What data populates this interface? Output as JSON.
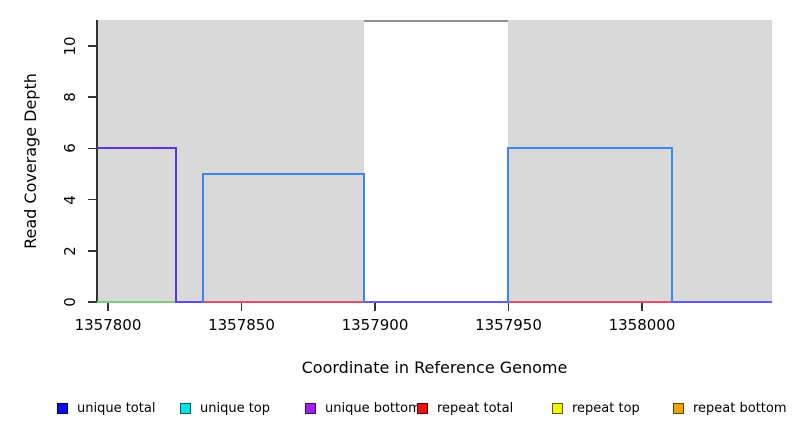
{
  "chart_data": {
    "type": "line",
    "title": "",
    "xlabel": "Coordinate in Reference Genome",
    "ylabel": "Read Coverage Depth",
    "xlim": [
      1357795.9,
      1358048.7
    ],
    "ylim": [
      0,
      11.05
    ],
    "x_ticks": [
      1357800,
      1357850,
      1357900,
      1357950,
      1358000
    ],
    "x_tick_labels": [
      "1357800",
      "1357850",
      "1357900",
      "1357950",
      "1358000"
    ],
    "y_ticks": [
      0,
      2,
      4,
      6,
      8,
      10
    ],
    "y_tick_labels": [
      "0",
      "2",
      "4",
      "6",
      "8",
      "10"
    ],
    "grid": false,
    "legend_position": "bottom",
    "background_regions": [
      {
        "name": "unique-region-left",
        "x1": 1357795.9,
        "x2": 1357895.9,
        "color": "#d9d9d9"
      },
      {
        "name": "repeat-region-white-band",
        "x1": 1357895.9,
        "x2": 1357949.8,
        "color": "#ffffff",
        "top_line_y": 11,
        "top_line_color": "#8e8e8e"
      },
      {
        "name": "unique-region-right",
        "x1": 1357949.8,
        "x2": 1358048.7,
        "color": "#d9d9d9"
      }
    ],
    "series": [
      {
        "name": "unique bottom",
        "color": "#5d33e6",
        "steps_x": [
          1357795.9,
          1357825.4,
          1358048.7
        ],
        "steps_y": [
          6,
          0,
          0
        ]
      },
      {
        "name": "unique total / unique top",
        "color": "#3b86f0",
        "steps_x": [
          1357795.9,
          1357835.6,
          1357895.9,
          1357949.8,
          1358011.2,
          1358048.7
        ],
        "steps_y": [
          0,
          5,
          0,
          6,
          0,
          0
        ]
      },
      {
        "name": "repeat total",
        "color": "#e04f66",
        "steps_x": [
          1357835.6,
          1358011.2
        ],
        "steps_y": [
          0,
          0
        ]
      }
    ],
    "drawn_segments": [
      {
        "kind": "h",
        "x1": 1357795.9,
        "x2": 1357825.4,
        "y": 0,
        "color": "#7ccd7c"
      },
      {
        "kind": "h",
        "x1": 1357795.9,
        "x2": 1357825.4,
        "y": 6,
        "color": "#5d33e6"
      },
      {
        "kind": "v",
        "x": 1357825.4,
        "y1": 0,
        "y2": 6,
        "color": "#5d33e6"
      },
      {
        "kind": "h",
        "x1": 1357825.4,
        "x2": 1357835.6,
        "y": 0,
        "color": "#5e48ea"
      },
      {
        "kind": "h",
        "x1": 1357835.6,
        "x2": 1357895.9,
        "y": 0,
        "color": "#e04f66"
      },
      {
        "kind": "h",
        "x1": 1357949.8,
        "x2": 1358011.2,
        "y": 0,
        "color": "#e04f66"
      },
      {
        "kind": "h",
        "x1": 1357895.9,
        "x2": 1357949.8,
        "y": 0,
        "color": "#625aee"
      },
      {
        "kind": "h",
        "x1": 1358011.2,
        "x2": 1358048.7,
        "y": 0,
        "color": "#625aee"
      },
      {
        "kind": "v",
        "x": 1357835.6,
        "y1": 0,
        "y2": 5,
        "color": "#3b86f0"
      },
      {
        "kind": "h",
        "x1": 1357835.6,
        "x2": 1357895.9,
        "y": 5,
        "color": "#3b86f0"
      },
      {
        "kind": "v",
        "x": 1357895.9,
        "y1": 0,
        "y2": 5,
        "color": "#3b86f0"
      },
      {
        "kind": "v",
        "x": 1357949.8,
        "y1": 0,
        "y2": 6,
        "color": "#3b86f0"
      },
      {
        "kind": "h",
        "x1": 1357949.8,
        "x2": 1358011.2,
        "y": 6,
        "color": "#3b86f0"
      },
      {
        "kind": "v",
        "x": 1358011.2,
        "y1": 0,
        "y2": 6,
        "color": "#3b86f0"
      }
    ]
  },
  "legend": {
    "items": [
      {
        "label": "unique total",
        "fill": "#0d0deb",
        "border": "#00005e"
      },
      {
        "label": "unique top",
        "fill": "#00e5e5",
        "border": "#005e5e"
      },
      {
        "label": "unique bottom",
        "fill": "#a020f0",
        "border": "#3d0b5e"
      },
      {
        "label": "repeat total",
        "fill": "#ee1111",
        "border": "#5e0000"
      },
      {
        "label": "repeat top",
        "fill": "#f2f20c",
        "border": "#5e5e00"
      },
      {
        "label": "repeat bottom",
        "fill": "#f2a20c",
        "border": "#5e4200"
      }
    ]
  }
}
